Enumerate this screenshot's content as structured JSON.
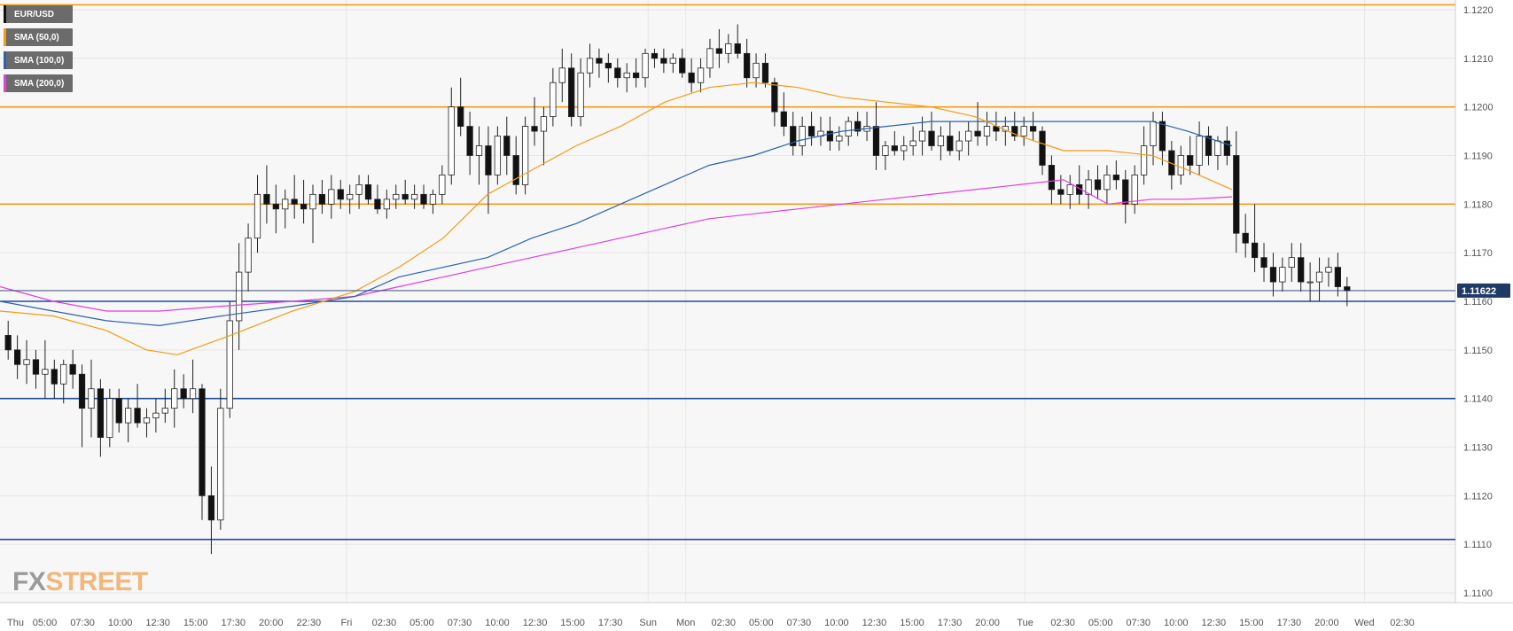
{
  "legend": [
    {
      "label": "EUR/USD",
      "color": "#111111"
    },
    {
      "label": "SMA (50,0)",
      "color": "#f39c12"
    },
    {
      "label": "SMA (100,0)",
      "color": "#2c62ad"
    },
    {
      "label": "SMA (200,0)",
      "color": "#e040e0"
    }
  ],
  "logo": {
    "fx": "FX",
    "street": "STREET"
  },
  "colors": {
    "background": "#ffffff",
    "plot_bg": "#f7f7f7",
    "grid": "#e6e6e6",
    "resistance": "#f39c12",
    "support": "#1f4e99",
    "sma50": "#f39c12",
    "sma100": "#2c62ad",
    "sma200": "#e040e0",
    "candle_up": "#ffffff",
    "candle_down": "#111111",
    "price_label_bg": "#1f3a66"
  },
  "chart_data": {
    "type": "candlestick",
    "symbol": "EUR/USD",
    "ylim": [
      1.1098,
      1.1222
    ],
    "y_ticks": [
      "1.1220",
      "1.1210",
      "1.1200",
      "1.1190",
      "1.1180",
      "1.1170",
      "1.1160",
      "1.1150",
      "1.1140",
      "1.1130",
      "1.1120",
      "1.1110",
      "1.1100"
    ],
    "x_ticks": [
      "Thu",
      "05:00",
      "07:30",
      "10:00",
      "12:30",
      "15:00",
      "17:30",
      "20:00",
      "22:30",
      "Fri",
      "02:30",
      "05:00",
      "07:30",
      "10:00",
      "12:30",
      "15:00",
      "17:30",
      "Sun",
      "Mon",
      "02:30",
      "05:00",
      "07:30",
      "10:00",
      "12:30",
      "15:00",
      "17:30",
      "20:00",
      "Tue",
      "02:30",
      "05:00",
      "07:30",
      "10:00",
      "12:30",
      "15:00",
      "17:30",
      "20:00",
      "Wed",
      "02:30"
    ],
    "current_price": "1.11622",
    "horizontal_levels": [
      {
        "value": 1.1221,
        "kind": "resistance"
      },
      {
        "value": 1.12,
        "kind": "resistance"
      },
      {
        "value": 1.118,
        "kind": "resistance"
      },
      {
        "value": 1.116,
        "kind": "support"
      },
      {
        "value": 1.114,
        "kind": "support"
      },
      {
        "value": 1.1111,
        "kind": "support"
      }
    ],
    "candles": [
      [
        1.1153,
        1.1156,
        1.1148,
        1.115
      ],
      [
        1.115,
        1.1153,
        1.1144,
        1.1147
      ],
      [
        1.1147,
        1.1152,
        1.1143,
        1.1148
      ],
      [
        1.1148,
        1.115,
        1.1142,
        1.1145
      ],
      [
        1.1145,
        1.1152,
        1.114,
        1.1146
      ],
      [
        1.1146,
        1.1148,
        1.114,
        1.1143
      ],
      [
        1.1143,
        1.1148,
        1.1139,
        1.1147
      ],
      [
        1.1147,
        1.115,
        1.1142,
        1.1145
      ],
      [
        1.1145,
        1.1147,
        1.113,
        1.1138
      ],
      [
        1.1138,
        1.1148,
        1.1132,
        1.1142
      ],
      [
        1.1142,
        1.1144,
        1.1128,
        1.1132
      ],
      [
        1.1132,
        1.1142,
        1.113,
        1.114
      ],
      [
        1.114,
        1.1142,
        1.1133,
        1.1135
      ],
      [
        1.1135,
        1.114,
        1.1131,
        1.1138
      ],
      [
        1.1138,
        1.1143,
        1.1134,
        1.1135
      ],
      [
        1.1135,
        1.1138,
        1.1132,
        1.1136
      ],
      [
        1.1136,
        1.114,
        1.1133,
        1.1137
      ],
      [
        1.1137,
        1.1142,
        1.1135,
        1.1138
      ],
      [
        1.1138,
        1.1146,
        1.1134,
        1.1142
      ],
      [
        1.1142,
        1.1145,
        1.1138,
        1.114
      ],
      [
        1.114,
        1.1148,
        1.1137,
        1.1142
      ],
      [
        1.1142,
        1.1143,
        1.1115,
        1.112
      ],
      [
        1.112,
        1.1126,
        1.1108,
        1.1115
      ],
      [
        1.1115,
        1.1142,
        1.1113,
        1.1138
      ],
      [
        1.1138,
        1.116,
        1.1136,
        1.1156
      ],
      [
        1.1156,
        1.1172,
        1.115,
        1.1166
      ],
      [
        1.1166,
        1.1176,
        1.1162,
        1.1173
      ],
      [
        1.1173,
        1.1186,
        1.117,
        1.1182
      ],
      [
        1.1182,
        1.1188,
        1.1176,
        1.118
      ],
      [
        1.118,
        1.1184,
        1.1174,
        1.1179
      ],
      [
        1.1179,
        1.1183,
        1.1175,
        1.1181
      ],
      [
        1.1181,
        1.1186,
        1.1177,
        1.118
      ],
      [
        1.118,
        1.1185,
        1.1176,
        1.1179
      ],
      [
        1.1179,
        1.1184,
        1.1172,
        1.1182
      ],
      [
        1.1182,
        1.1185,
        1.1178,
        1.118
      ],
      [
        1.118,
        1.1186,
        1.1177,
        1.1183
      ],
      [
        1.1183,
        1.1185,
        1.1179,
        1.1181
      ],
      [
        1.1181,
        1.1184,
        1.1178,
        1.1182
      ],
      [
        1.1182,
        1.1186,
        1.1179,
        1.1184
      ],
      [
        1.1184,
        1.1186,
        1.118,
        1.1181
      ],
      [
        1.1181,
        1.1184,
        1.1178,
        1.1179
      ],
      [
        1.1179,
        1.1183,
        1.1177,
        1.1181
      ],
      [
        1.1181,
        1.1184,
        1.1179,
        1.1182
      ],
      [
        1.1182,
        1.1185,
        1.118,
        1.1181
      ],
      [
        1.1181,
        1.1184,
        1.1179,
        1.1182
      ],
      [
        1.1182,
        1.1184,
        1.1179,
        1.118
      ],
      [
        1.118,
        1.1183,
        1.1178,
        1.1182
      ],
      [
        1.1182,
        1.1188,
        1.118,
        1.1186
      ],
      [
        1.1186,
        1.1204,
        1.1184,
        1.12
      ],
      [
        1.12,
        1.1206,
        1.1194,
        1.1196
      ],
      [
        1.1196,
        1.1199,
        1.1186,
        1.119
      ],
      [
        1.119,
        1.1196,
        1.1184,
        1.1192
      ],
      [
        1.1192,
        1.1196,
        1.1178,
        1.1186
      ],
      [
        1.1186,
        1.1196,
        1.1184,
        1.1194
      ],
      [
        1.1194,
        1.1198,
        1.1186,
        1.119
      ],
      [
        1.119,
        1.1194,
        1.1182,
        1.1184
      ],
      [
        1.1184,
        1.1198,
        1.1182,
        1.1196
      ],
      [
        1.1196,
        1.1202,
        1.1192,
        1.1195
      ],
      [
        1.1195,
        1.12,
        1.1188,
        1.1198
      ],
      [
        1.1198,
        1.1208,
        1.1196,
        1.1205
      ],
      [
        1.1205,
        1.1212,
        1.1201,
        1.1208
      ],
      [
        1.1208,
        1.1211,
        1.1196,
        1.1198
      ],
      [
        1.1198,
        1.121,
        1.1196,
        1.1207
      ],
      [
        1.1207,
        1.1213,
        1.1204,
        1.121
      ],
      [
        1.121,
        1.1212,
        1.1206,
        1.1209
      ],
      [
        1.1209,
        1.1211,
        1.1205,
        1.1208
      ],
      [
        1.1208,
        1.121,
        1.1204,
        1.1206
      ],
      [
        1.1206,
        1.1209,
        1.1203,
        1.1207
      ],
      [
        1.1207,
        1.121,
        1.1204,
        1.1206
      ],
      [
        1.1206,
        1.1212,
        1.1204,
        1.1211
      ],
      [
        1.1211,
        1.1212,
        1.1208,
        1.121
      ],
      [
        1.121,
        1.1212,
        1.1207,
        1.1209
      ],
      [
        1.1209,
        1.1211,
        1.1207,
        1.121
      ],
      [
        1.121,
        1.1212,
        1.1206,
        1.1207
      ],
      [
        1.1207,
        1.121,
        1.1203,
        1.1205
      ],
      [
        1.1205,
        1.121,
        1.1203,
        1.1208
      ],
      [
        1.1208,
        1.1214,
        1.1206,
        1.1212
      ],
      [
        1.1212,
        1.1216,
        1.1208,
        1.1211
      ],
      [
        1.1211,
        1.1215,
        1.1209,
        1.1213
      ],
      [
        1.1213,
        1.1217,
        1.121,
        1.1211
      ],
      [
        1.1211,
        1.1214,
        1.1204,
        1.1206
      ],
      [
        1.1206,
        1.1211,
        1.1204,
        1.1209
      ],
      [
        1.1209,
        1.1211,
        1.1204,
        1.1205
      ],
      [
        1.1205,
        1.1206,
        1.1196,
        1.1199
      ],
      [
        1.1199,
        1.1203,
        1.1194,
        1.1196
      ],
      [
        1.1196,
        1.1199,
        1.119,
        1.1192
      ],
      [
        1.1192,
        1.1198,
        1.119,
        1.1196
      ],
      [
        1.1196,
        1.1199,
        1.1192,
        1.1194
      ],
      [
        1.1194,
        1.1198,
        1.1192,
        1.1195
      ],
      [
        1.1195,
        1.1198,
        1.1191,
        1.1193
      ],
      [
        1.1193,
        1.1196,
        1.1191,
        1.1194
      ],
      [
        1.1194,
        1.1198,
        1.1192,
        1.1197
      ],
      [
        1.1197,
        1.1199,
        1.1194,
        1.1195
      ],
      [
        1.1195,
        1.1199,
        1.1193,
        1.1196
      ],
      [
        1.1196,
        1.1201,
        1.1187,
        1.119
      ],
      [
        1.119,
        1.1193,
        1.1187,
        1.1192
      ],
      [
        1.1192,
        1.1195,
        1.119,
        1.1191
      ],
      [
        1.1191,
        1.1194,
        1.1189,
        1.1192
      ],
      [
        1.1192,
        1.1196,
        1.119,
        1.1193
      ],
      [
        1.1193,
        1.1198,
        1.119,
        1.1195
      ],
      [
        1.1195,
        1.1199,
        1.1191,
        1.1192
      ],
      [
        1.1192,
        1.1196,
        1.1189,
        1.1194
      ],
      [
        1.1194,
        1.1197,
        1.119,
        1.1191
      ],
      [
        1.1191,
        1.1195,
        1.1189,
        1.1193
      ],
      [
        1.1193,
        1.1197,
        1.119,
        1.1195
      ],
      [
        1.1195,
        1.1201,
        1.1192,
        1.1194
      ],
      [
        1.1194,
        1.1199,
        1.1192,
        1.1196
      ],
      [
        1.1196,
        1.1199,
        1.1193,
        1.1195
      ],
      [
        1.1195,
        1.1198,
        1.1192,
        1.1196
      ],
      [
        1.1196,
        1.1199,
        1.1193,
        1.1194
      ],
      [
        1.1194,
        1.1198,
        1.1192,
        1.1196
      ],
      [
        1.1196,
        1.1199,
        1.1193,
        1.1195
      ],
      [
        1.1195,
        1.1196,
        1.1186,
        1.1188
      ],
      [
        1.1188,
        1.119,
        1.118,
        1.1183
      ],
      [
        1.1183,
        1.1186,
        1.118,
        1.1182
      ],
      [
        1.1182,
        1.1186,
        1.1179,
        1.1184
      ],
      [
        1.1184,
        1.1188,
        1.118,
        1.1182
      ],
      [
        1.1182,
        1.1187,
        1.1179,
        1.1185
      ],
      [
        1.1185,
        1.1188,
        1.1181,
        1.1183
      ],
      [
        1.1183,
        1.1188,
        1.118,
        1.1186
      ],
      [
        1.1186,
        1.1189,
        1.1183,
        1.1185
      ],
      [
        1.1185,
        1.1187,
        1.1176,
        1.118
      ],
      [
        1.118,
        1.1188,
        1.1178,
        1.1186
      ],
      [
        1.1186,
        1.1196,
        1.1184,
        1.1192
      ],
      [
        1.1192,
        1.1199,
        1.1188,
        1.1197
      ],
      [
        1.1197,
        1.1199,
        1.1188,
        1.1191
      ],
      [
        1.1191,
        1.1193,
        1.1183,
        1.1186
      ],
      [
        1.1186,
        1.1192,
        1.1184,
        1.119
      ],
      [
        1.119,
        1.1194,
        1.1186,
        1.1188
      ],
      [
        1.1188,
        1.1197,
        1.1186,
        1.1194
      ],
      [
        1.1194,
        1.1196,
        1.1188,
        1.119
      ],
      [
        1.119,
        1.1194,
        1.1187,
        1.1193
      ],
      [
        1.1193,
        1.1196,
        1.1188,
        1.119
      ],
      [
        1.119,
        1.1195,
        1.117,
        1.1174
      ],
      [
        1.1174,
        1.1178,
        1.1169,
        1.1172
      ],
      [
        1.1172,
        1.118,
        1.1166,
        1.1169
      ],
      [
        1.1169,
        1.1172,
        1.1164,
        1.1167
      ],
      [
        1.1167,
        1.117,
        1.1161,
        1.1164
      ],
      [
        1.1164,
        1.1169,
        1.1162,
        1.1167
      ],
      [
        1.1167,
        1.1172,
        1.1164,
        1.1169
      ],
      [
        1.1169,
        1.1172,
        1.1162,
        1.1164
      ],
      [
        1.1164,
        1.1168,
        1.116,
        1.1164
      ],
      [
        1.1164,
        1.1169,
        1.116,
        1.1166
      ],
      [
        1.1166,
        1.1169,
        1.1163,
        1.1167
      ],
      [
        1.1167,
        1.117,
        1.1161,
        1.1163
      ],
      [
        1.1163,
        1.1165,
        1.1159,
        1.11622
      ]
    ],
    "sma50": [
      [
        0,
        1.1158
      ],
      [
        60,
        1.1157
      ],
      [
        120,
        1.1154
      ],
      [
        165,
        1.115
      ],
      [
        200,
        1.1149
      ],
      [
        260,
        1.1153
      ],
      [
        330,
        1.1158
      ],
      [
        400,
        1.1162
      ],
      [
        450,
        1.1167
      ],
      [
        500,
        1.1173
      ],
      [
        550,
        1.1182
      ],
      [
        600,
        1.1187
      ],
      [
        650,
        1.1192
      ],
      [
        700,
        1.1196
      ],
      [
        750,
        1.1201
      ],
      [
        800,
        1.1204
      ],
      [
        850,
        1.1205
      ],
      [
        900,
        1.1204
      ],
      [
        950,
        1.1202
      ],
      [
        1000,
        1.1201
      ],
      [
        1050,
        1.12
      ],
      [
        1100,
        1.1198
      ],
      [
        1150,
        1.1194
      ],
      [
        1200,
        1.1191
      ],
      [
        1250,
        1.1191
      ],
      [
        1300,
        1.119
      ],
      [
        1340,
        1.1187
      ],
      [
        1390,
        1.1183
      ]
    ],
    "sma100": [
      [
        0,
        1.116
      ],
      [
        60,
        1.1158
      ],
      [
        120,
        1.1156
      ],
      [
        180,
        1.1155
      ],
      [
        250,
        1.1157
      ],
      [
        330,
        1.1159
      ],
      [
        400,
        1.1161
      ],
      [
        450,
        1.1165
      ],
      [
        500,
        1.1167
      ],
      [
        550,
        1.1169
      ],
      [
        600,
        1.1173
      ],
      [
        650,
        1.1176
      ],
      [
        700,
        1.118
      ],
      [
        750,
        1.1184
      ],
      [
        800,
        1.1188
      ],
      [
        850,
        1.119
      ],
      [
        900,
        1.1193
      ],
      [
        950,
        1.1195
      ],
      [
        1000,
        1.1196
      ],
      [
        1050,
        1.1197
      ],
      [
        1100,
        1.1197
      ],
      [
        1150,
        1.1197
      ],
      [
        1200,
        1.1197
      ],
      [
        1250,
        1.1197
      ],
      [
        1300,
        1.1197
      ],
      [
        1340,
        1.1195
      ],
      [
        1390,
        1.1192
      ]
    ],
    "sma200": [
      [
        0,
        1.1163
      ],
      [
        60,
        1.116
      ],
      [
        120,
        1.1158
      ],
      [
        180,
        1.1158
      ],
      [
        250,
        1.1159
      ],
      [
        330,
        1.116
      ],
      [
        400,
        1.1161
      ],
      [
        450,
        1.1163
      ],
      [
        500,
        1.1165
      ],
      [
        550,
        1.1167
      ],
      [
        600,
        1.1169
      ],
      [
        650,
        1.1171
      ],
      [
        700,
        1.1173
      ],
      [
        750,
        1.1175
      ],
      [
        800,
        1.1177
      ],
      [
        850,
        1.1178
      ],
      [
        900,
        1.1179
      ],
      [
        950,
        1.118
      ],
      [
        1000,
        1.1181
      ],
      [
        1050,
        1.1182
      ],
      [
        1100,
        1.1183
      ],
      [
        1150,
        1.1184
      ],
      [
        1200,
        1.1185
      ],
      [
        1250,
        1.118
      ],
      [
        1300,
        1.1181
      ],
      [
        1340,
        1.1181
      ],
      [
        1390,
        1.11815
      ]
    ]
  }
}
